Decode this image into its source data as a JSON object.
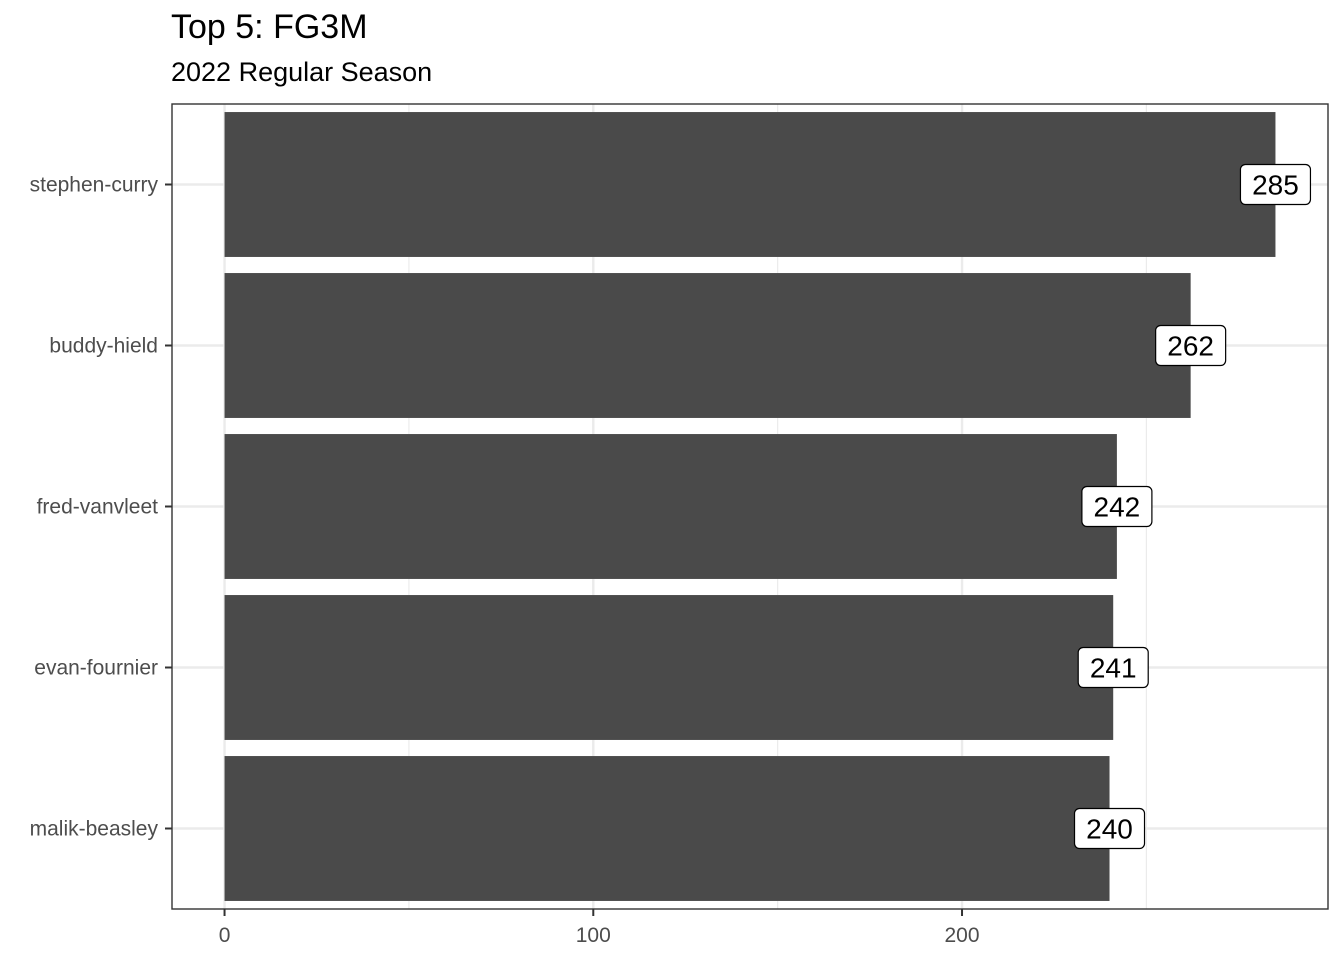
{
  "chart_data": {
    "type": "bar",
    "orientation": "horizontal",
    "title": "Top 5: FG3M",
    "subtitle": "2022 Regular Season",
    "xlabel": "",
    "ylabel": "",
    "categories": [
      "stephen-curry",
      "buddy-hield",
      "fred-vanvleet",
      "evan-fournier",
      "malik-beasley"
    ],
    "values": [
      285,
      262,
      242,
      241,
      240
    ],
    "xlim": [
      -14.25,
      299.25
    ],
    "xticks": [
      0,
      100,
      200
    ],
    "grid": true,
    "bar_color": "#4a4a4a",
    "grid_color": "#ebebeb",
    "panel_border_color": "#333333"
  }
}
